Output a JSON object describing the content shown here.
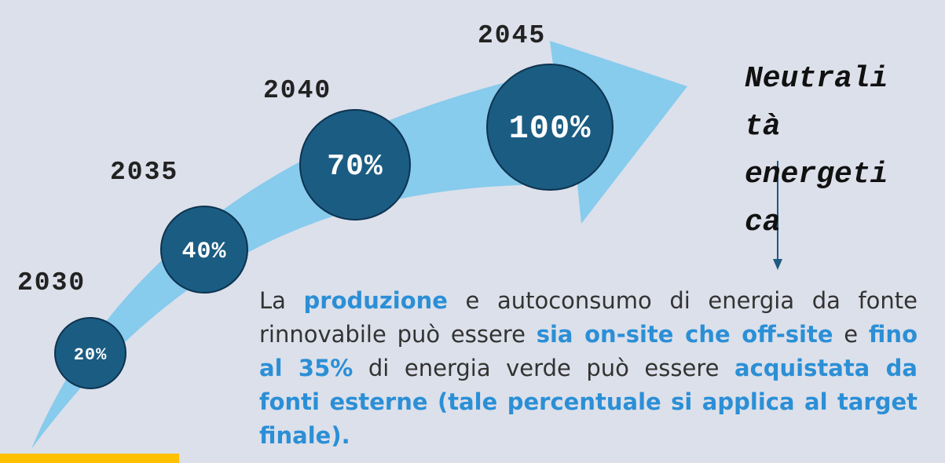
{
  "milestones": [
    {
      "year": "2030",
      "label": "20%"
    },
    {
      "year": "2035",
      "label": "40%"
    },
    {
      "year": "2040",
      "label": "70%"
    },
    {
      "year": "2045",
      "label": "100%"
    }
  ],
  "goal": "Neutralità energetica",
  "description": [
    {
      "text": "La ",
      "bold": false
    },
    {
      "text": "produzione",
      "bold": true
    },
    {
      "text": " e autoconsumo di energia da fonte rinnovabile può essere ",
      "bold": false
    },
    {
      "text": "sia on-site che off-site",
      "bold": true
    },
    {
      "text": " e ",
      "bold": false
    },
    {
      "text": "fino al 35%",
      "bold": true
    },
    {
      "text": " di energia verde può essere ",
      "bold": false
    },
    {
      "text": "acquistata da fonti esterne (tale percentuale si applica al target finale).",
      "bold": true
    }
  ]
}
